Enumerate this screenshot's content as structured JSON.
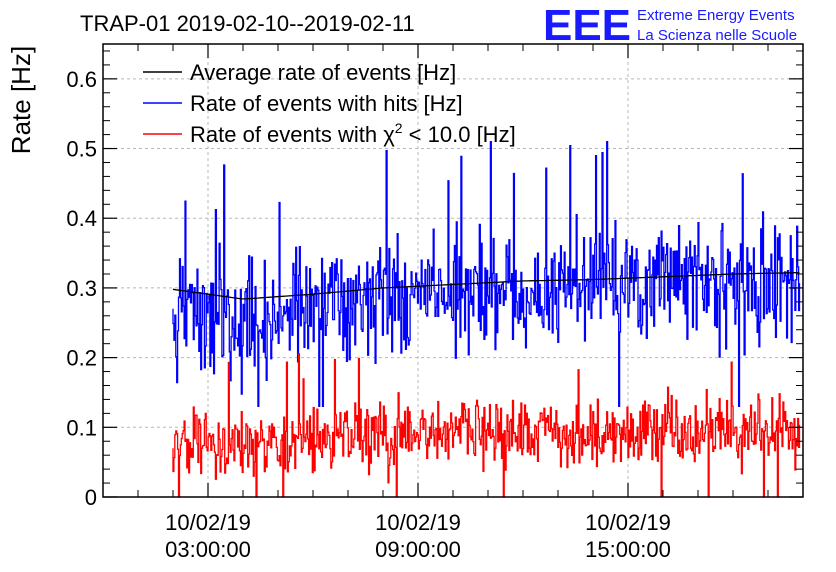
{
  "chart_data": {
    "type": "line",
    "title": "TRAP-01 2019-02-10--2019-02-11",
    "xlabel": "",
    "ylabel": "Rate [Hz]",
    "ylim": [
      0,
      0.65
    ],
    "y_ticks": [
      "0",
      "0.1",
      "0.2",
      "0.3",
      "0.4",
      "0.5",
      "0.6"
    ],
    "x_range_hours": [
      0.0,
      20.0
    ],
    "x_ticks": [
      {
        "date": "10/02/19",
        "time": "03:00:00",
        "hours": 3
      },
      {
        "date": "10/02/19",
        "time": "09:00:00",
        "hours": 9
      },
      {
        "date": "10/02/19",
        "time": "15:00:00",
        "hours": 15
      }
    ],
    "grid": true,
    "legend_placement": "top-left",
    "series": [
      {
        "name": "Average rate of events [Hz]",
        "label_main": "Average rate of events [Hz]",
        "color": "#000000",
        "x": [
          2.0,
          4.0,
          6.0,
          8.0,
          10.0,
          12.0,
          14.0,
          16.0,
          18.0,
          19.9
        ],
        "values": [
          0.298,
          0.284,
          0.291,
          0.3,
          0.305,
          0.31,
          0.312,
          0.316,
          0.32,
          0.322
        ]
      },
      {
        "name": "Rate of events with hits [Hz]",
        "label_main": "Rate of events with hits [Hz]",
        "color": "#0000ff",
        "x": [
          2.0,
          4.0,
          6.0,
          8.0,
          10.0,
          12.0,
          14.0,
          16.0,
          18.0,
          19.9
        ],
        "values": [
          0.27,
          0.25,
          0.28,
          0.29,
          0.3,
          0.29,
          0.3,
          0.31,
          0.3,
          0.31
        ],
        "min": 0.13,
        "max": 0.51,
        "noise_amplitude": 0.07
      },
      {
        "name": "Rate of events with χ² < 10.0 [Hz]",
        "label_pre": "Rate of events with χ",
        "label_sup": "2",
        "label_post": " < 10.0 [Hz]",
        "color": "#ff0000",
        "x": [
          2.0,
          4.0,
          6.0,
          8.0,
          10.0,
          12.0,
          14.0,
          16.0,
          18.0,
          19.9
        ],
        "values": [
          0.07,
          0.07,
          0.08,
          0.09,
          0.09,
          0.09,
          0.09,
          0.1,
          0.09,
          0.1
        ],
        "min": 0.0,
        "max": 0.21,
        "noise_amplitude": 0.04
      }
    ]
  },
  "logo": {
    "text": "EEE",
    "line1": "Extreme Energy Events",
    "line2": "La Scienza nelle Scuole"
  }
}
